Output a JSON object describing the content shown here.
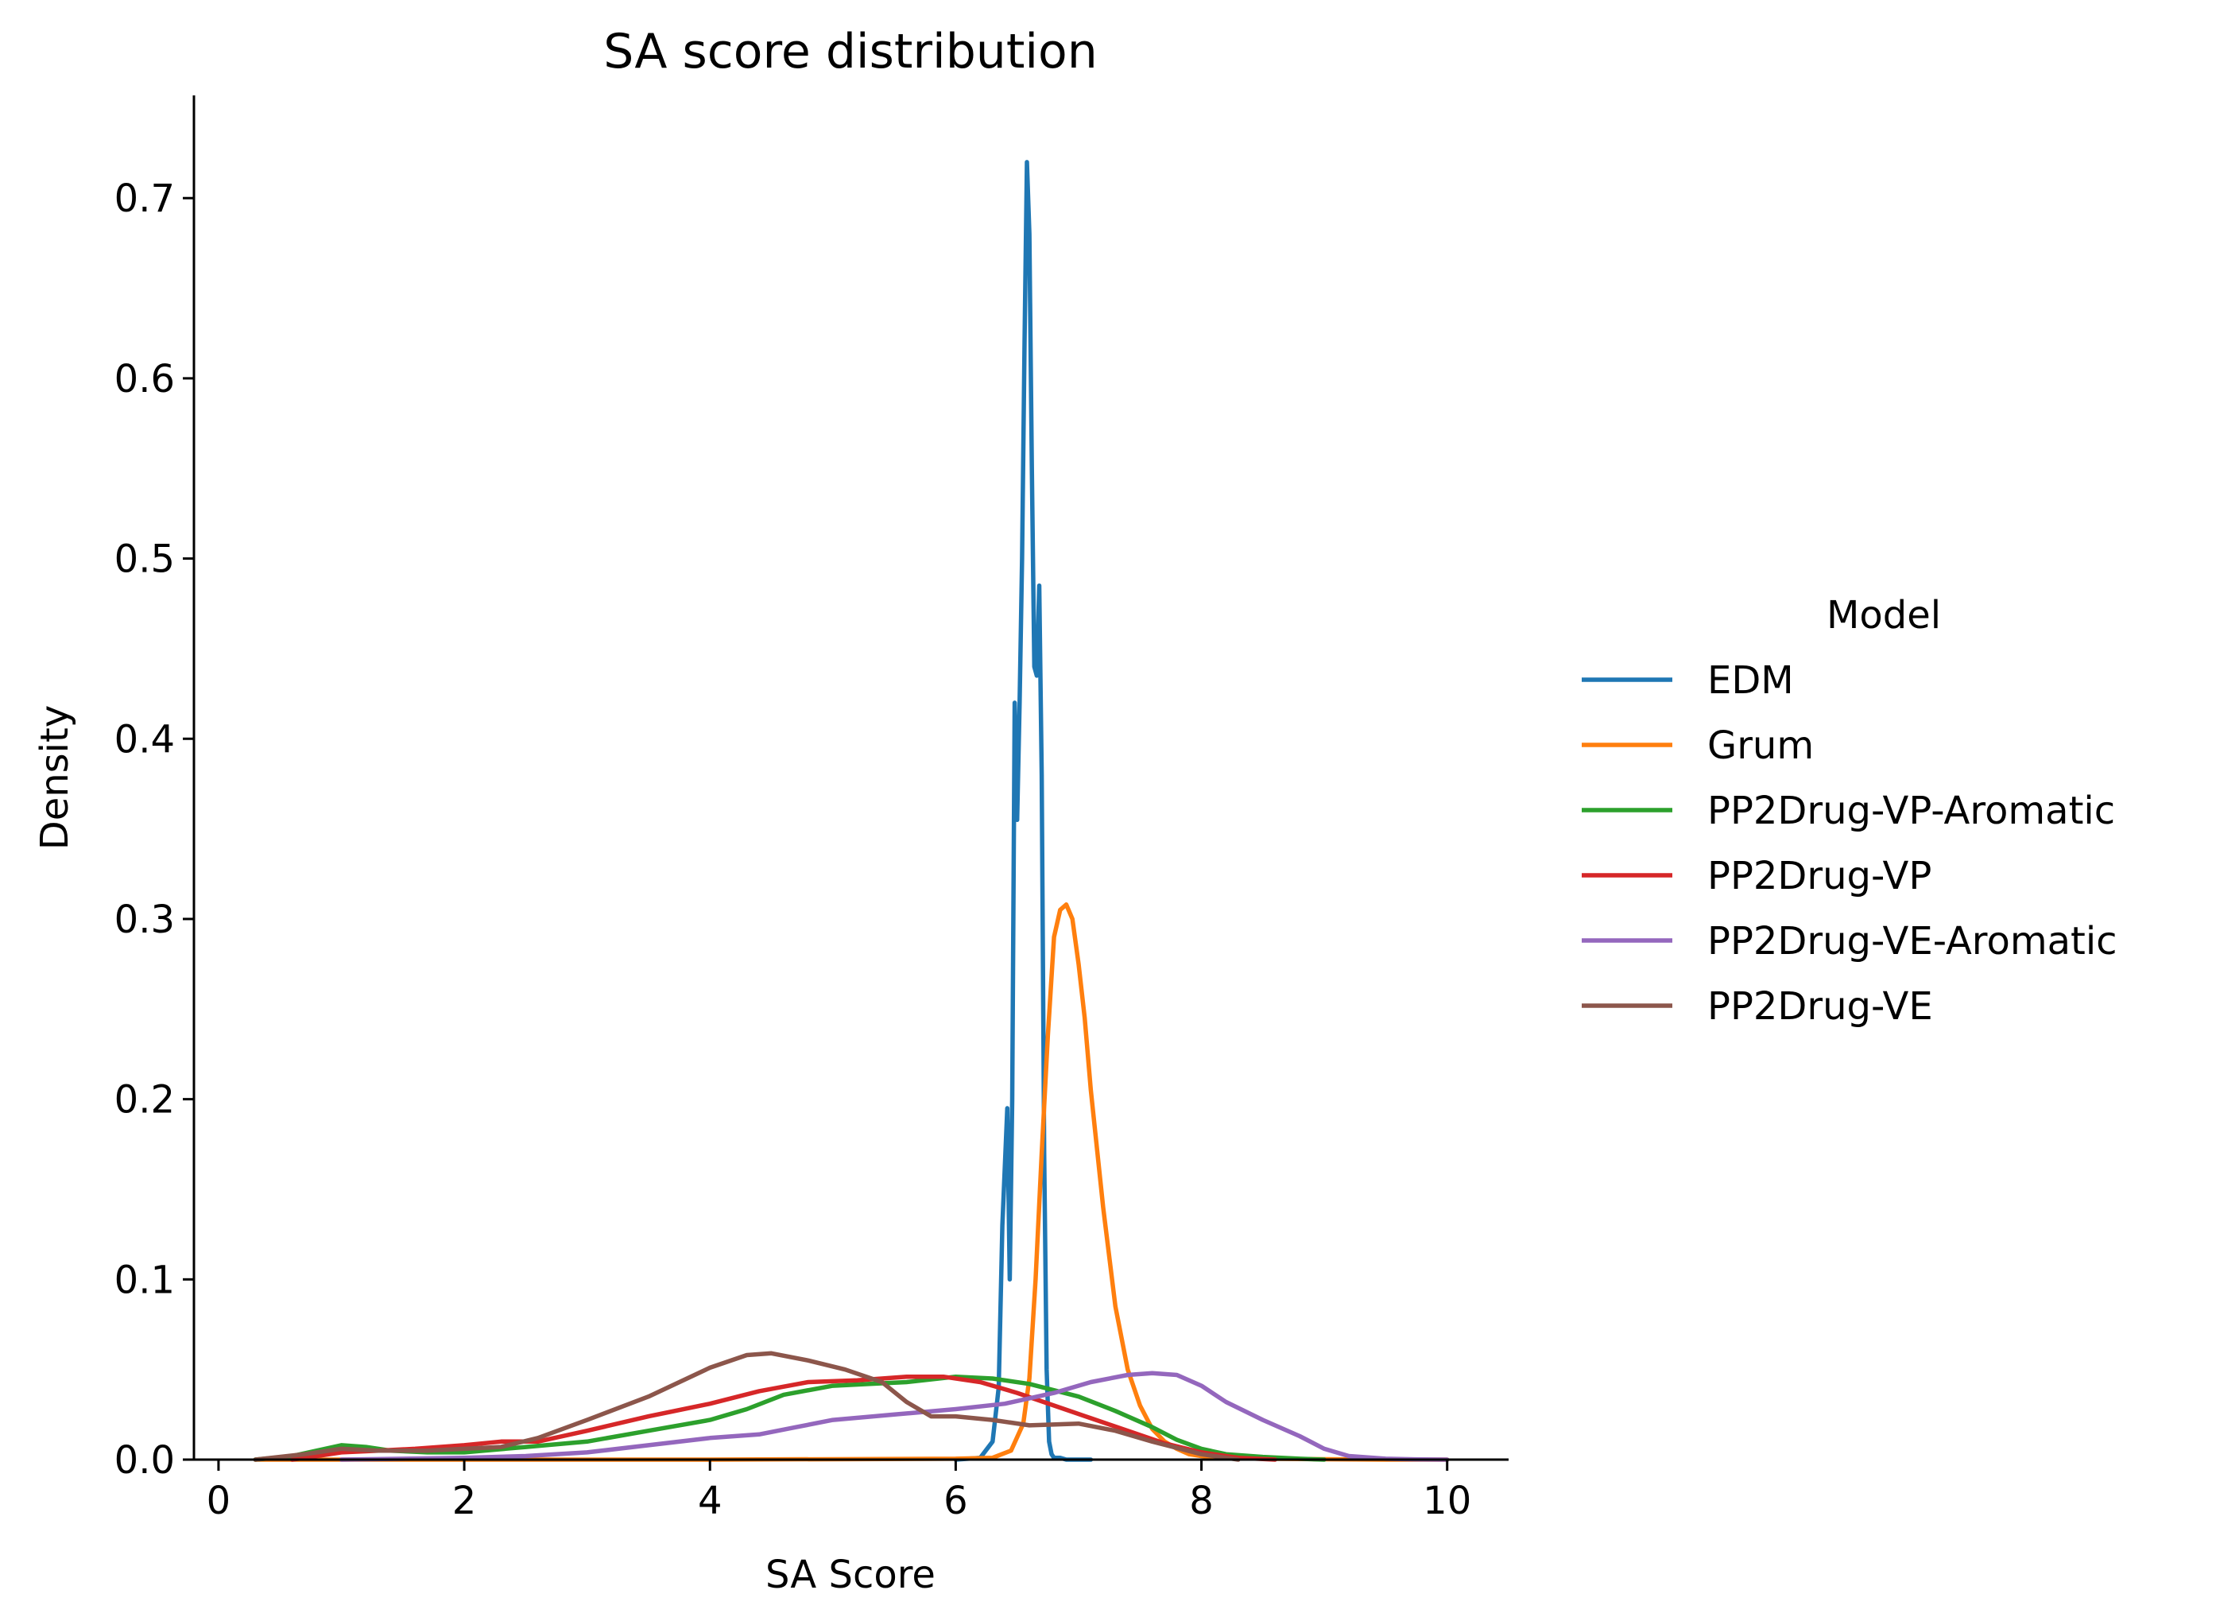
{
  "chart_data": {
    "type": "line",
    "title": "SA score distribution",
    "xlabel": "SA Score",
    "ylabel": "Density",
    "xlim": [
      -0.2,
      10.5
    ],
    "ylim": [
      0,
      0.757
    ],
    "x_ticks": [
      0,
      2,
      4,
      6,
      8,
      10
    ],
    "y_ticks": [
      0.0,
      0.1,
      0.2,
      0.3,
      0.4,
      0.5,
      0.6,
      0.7
    ],
    "x_tick_labels": [
      "0",
      "2",
      "4",
      "6",
      "8",
      "10"
    ],
    "y_tick_labels": [
      "0.0",
      "0.1",
      "0.2",
      "0.3",
      "0.4",
      "0.5",
      "0.6",
      "0.7"
    ],
    "grid": false,
    "legend": {
      "title": "Model",
      "placement": "right",
      "entries": [
        "EDM",
        "Grum",
        "PP2Drug-VP-Aromatic",
        "PP2Drug-VP",
        "PP2Drug-VE-Aromatic",
        "PP2Drug-VE"
      ]
    },
    "series": [
      {
        "name": "EDM",
        "color": "#1f77b4",
        "x": [
          6.0,
          6.2,
          6.3,
          6.35,
          6.38,
          6.42,
          6.44,
          6.46,
          6.48,
          6.5,
          6.52,
          6.54,
          6.56,
          6.58,
          6.6,
          6.62,
          6.64,
          6.66,
          6.68,
          6.7,
          6.72,
          6.74,
          6.76,
          6.78,
          6.8,
          6.85,
          6.9,
          7.0,
          7.1
        ],
        "y": [
          0.0,
          0.001,
          0.01,
          0.04,
          0.13,
          0.195,
          0.1,
          0.2,
          0.42,
          0.355,
          0.42,
          0.5,
          0.62,
          0.72,
          0.68,
          0.55,
          0.44,
          0.435,
          0.485,
          0.38,
          0.17,
          0.05,
          0.01,
          0.003,
          0.001,
          0.001,
          0.0,
          0.0,
          0.0
        ]
      },
      {
        "name": "Grum",
        "color": "#ff7f0e",
        "x": [
          0.3,
          2.0,
          4.0,
          6.0,
          6.3,
          6.45,
          6.55,
          6.6,
          6.65,
          6.7,
          6.75,
          6.8,
          6.85,
          6.9,
          6.95,
          7.0,
          7.05,
          7.1,
          7.2,
          7.3,
          7.4,
          7.5,
          7.6,
          7.7,
          7.8,
          7.9,
          8.0,
          8.2,
          8.5,
          9.0,
          9.5,
          10.0
        ],
        "y": [
          0.0,
          0.0,
          0.0,
          0.0005,
          0.001,
          0.005,
          0.02,
          0.045,
          0.1,
          0.17,
          0.235,
          0.29,
          0.305,
          0.308,
          0.3,
          0.275,
          0.245,
          0.205,
          0.14,
          0.085,
          0.05,
          0.03,
          0.017,
          0.01,
          0.006,
          0.003,
          0.002,
          0.001,
          0.0005,
          0.0002,
          0.0,
          0.0
        ]
      },
      {
        "name": "PP2Drug-VP-Aromatic",
        "color": "#2ca02c",
        "x": [
          0.3,
          0.6,
          0.8,
          1.0,
          1.2,
          1.4,
          1.7,
          2.0,
          2.5,
          3.0,
          3.5,
          4.0,
          4.3,
          4.6,
          5.0,
          5.3,
          5.6,
          6.0,
          6.3,
          6.6,
          7.0,
          7.3,
          7.6,
          7.8,
          8.0,
          8.2,
          8.5,
          8.8,
          9.0
        ],
        "y": [
          0.0,
          0.002,
          0.005,
          0.008,
          0.007,
          0.005,
          0.004,
          0.004,
          0.007,
          0.01,
          0.016,
          0.022,
          0.028,
          0.036,
          0.041,
          0.042,
          0.043,
          0.046,
          0.045,
          0.042,
          0.035,
          0.027,
          0.018,
          0.011,
          0.006,
          0.003,
          0.0015,
          0.0005,
          0.0
        ]
      },
      {
        "name": "PP2Drug-VP",
        "color": "#d62728",
        "x": [
          0.6,
          0.8,
          1.0,
          1.3,
          1.6,
          2.0,
          2.3,
          2.6,
          3.0,
          3.5,
          4.0,
          4.4,
          4.8,
          5.2,
          5.6,
          5.9,
          6.2,
          6.5,
          6.8,
          7.1,
          7.4,
          7.7,
          8.0,
          8.3,
          8.6
        ],
        "y": [
          0.0,
          0.002,
          0.004,
          0.005,
          0.006,
          0.008,
          0.01,
          0.01,
          0.016,
          0.024,
          0.031,
          0.038,
          0.043,
          0.044,
          0.046,
          0.046,
          0.043,
          0.037,
          0.03,
          0.023,
          0.016,
          0.009,
          0.004,
          0.001,
          0.0
        ]
      },
      {
        "name": "PP2Drug-VE-Aromatic",
        "color": "#9467bd",
        "x": [
          1.0,
          2.0,
          2.5,
          3.0,
          3.5,
          4.0,
          4.4,
          4.7,
          5.0,
          5.5,
          6.0,
          6.4,
          6.8,
          7.1,
          7.4,
          7.6,
          7.8,
          8.0,
          8.2,
          8.5,
          8.8,
          9.0,
          9.2,
          9.5,
          9.8,
          10.0
        ],
        "y": [
          0.0,
          0.001,
          0.002,
          0.004,
          0.008,
          0.012,
          0.014,
          0.018,
          0.022,
          0.025,
          0.028,
          0.031,
          0.037,
          0.043,
          0.047,
          0.048,
          0.047,
          0.041,
          0.032,
          0.022,
          0.013,
          0.006,
          0.002,
          0.0005,
          0.0001,
          0.0
        ]
      },
      {
        "name": "PP2Drug-VE",
        "color": "#8c564b",
        "x": [
          0.3,
          0.7,
          1.0,
          1.3,
          1.7,
          2.0,
          2.3,
          2.6,
          3.0,
          3.5,
          4.0,
          4.3,
          4.5,
          4.8,
          5.1,
          5.4,
          5.6,
          5.8,
          6.0,
          6.3,
          6.6,
          7.0,
          7.3,
          7.6,
          8.0,
          8.3
        ],
        "y": [
          0.0,
          0.003,
          0.006,
          0.005,
          0.005,
          0.006,
          0.007,
          0.012,
          0.022,
          0.035,
          0.051,
          0.058,
          0.059,
          0.055,
          0.05,
          0.043,
          0.032,
          0.024,
          0.024,
          0.022,
          0.019,
          0.02,
          0.016,
          0.01,
          0.003,
          0.0
        ]
      }
    ]
  }
}
